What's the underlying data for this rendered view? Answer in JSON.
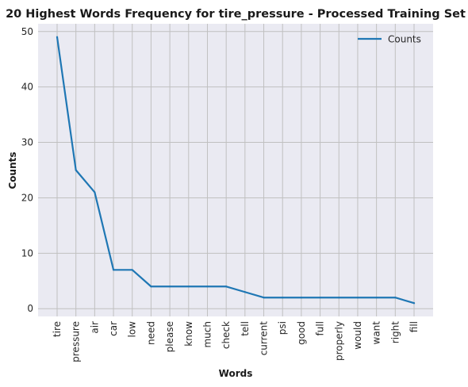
{
  "chart_data": {
    "type": "line",
    "title": "20 Highest Words Frequency for tire_pressure - Processed Training Set",
    "xlabel": "Words",
    "ylabel": "Counts",
    "categories": [
      "tire",
      "pressure",
      "air",
      "car",
      "low",
      "need",
      "please",
      "know",
      "much",
      "check",
      "tell",
      "current",
      "psi",
      "good",
      "full",
      "properly",
      "would",
      "want",
      "right",
      "fill"
    ],
    "series": [
      {
        "name": "Counts",
        "values": [
          49,
          25,
          21,
          7,
          7,
          4,
          4,
          4,
          4,
          4,
          3,
          2,
          2,
          2,
          2,
          2,
          2,
          2,
          2,
          1
        ]
      }
    ],
    "ylim": [
      -1.4,
      51.4
    ],
    "yticks": [
      0,
      10,
      20,
      30,
      40,
      50
    ],
    "grid": true,
    "legend_position": "top-right",
    "line_color": "#1f77b4",
    "background_color": "#eaeaf2",
    "grid_color": "#c0c0c0"
  }
}
